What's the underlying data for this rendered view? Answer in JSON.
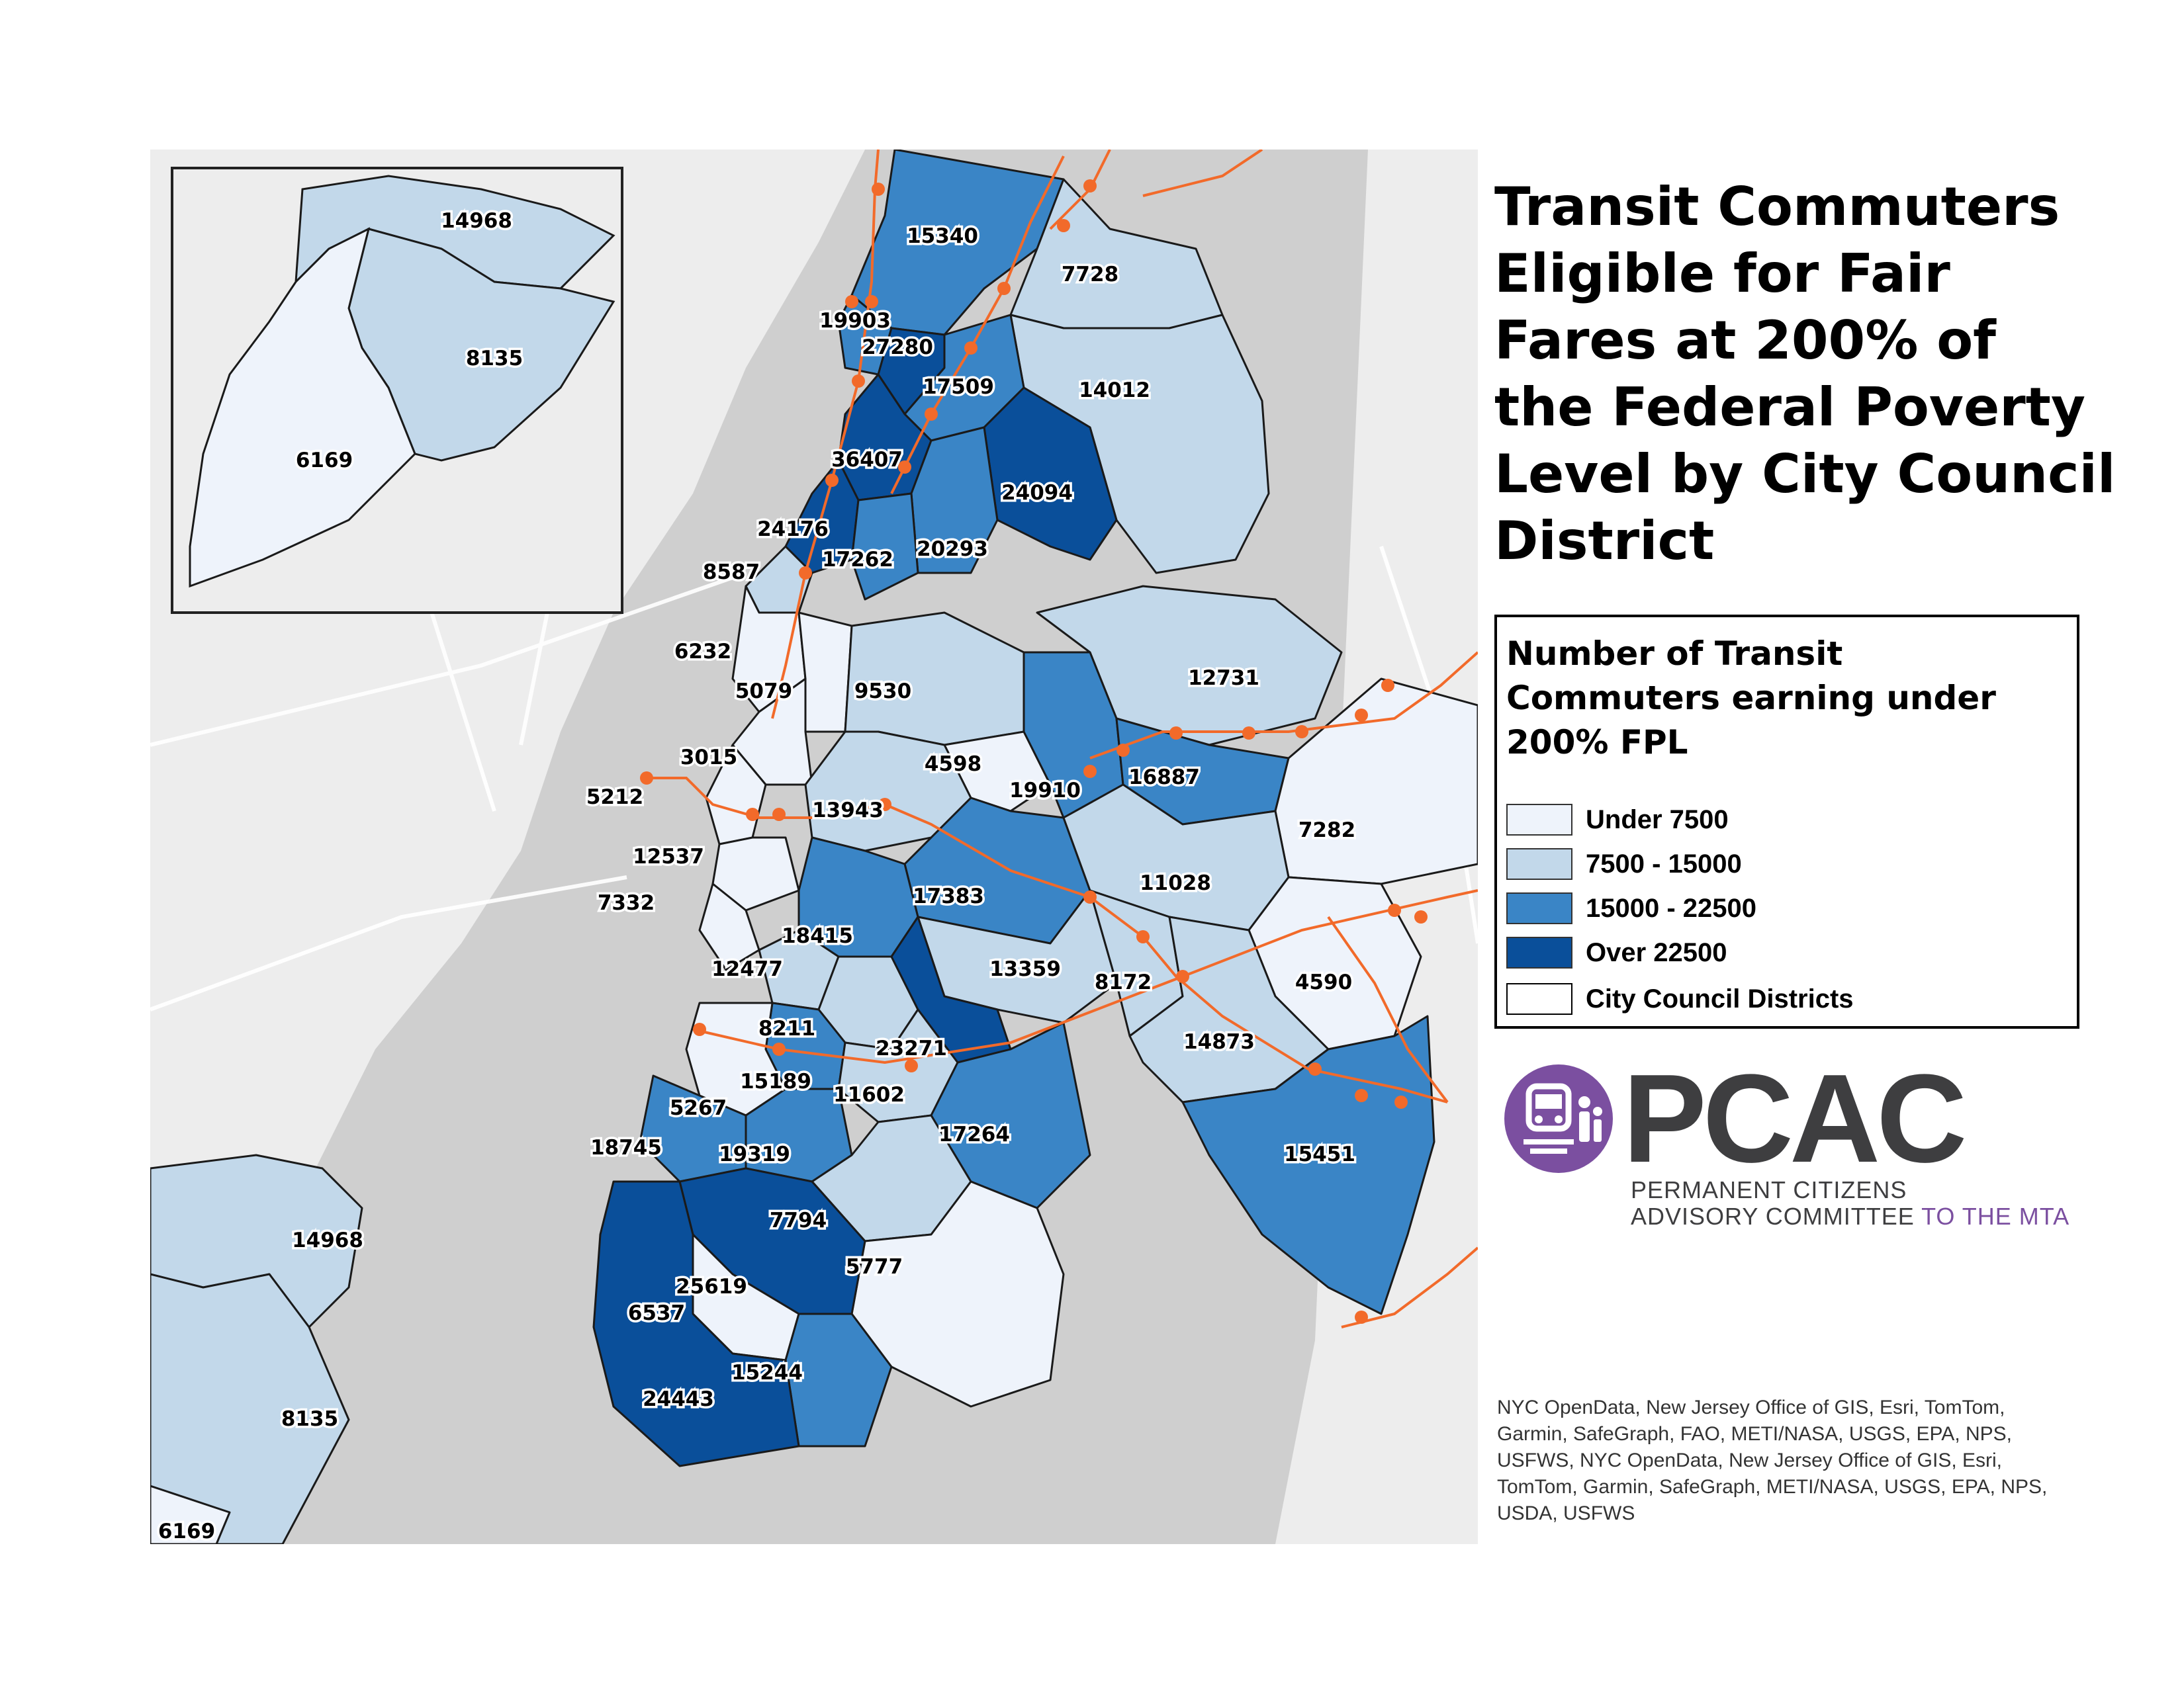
{
  "title_lines": [
    "Transit Commuters",
    "Eligible for Fair",
    "Fares at 200% of",
    "the Federal Poverty",
    "Level by City Council",
    "District"
  ],
  "legend": {
    "title_lines": [
      "Number of Transit",
      "Commuters earning under",
      "200% FPL"
    ],
    "items": [
      {
        "label": "Under 7500",
        "color": "#eef3fb"
      },
      {
        "label": "7500 - 15000",
        "color": "#c2d8ea"
      },
      {
        "label": "15000 - 22500",
        "color": "#3a85c6"
      },
      {
        "label": "Over 22500",
        "color": "#0a4f9a"
      },
      {
        "label": "City Council Districts",
        "color": "#ffffff"
      }
    ]
  },
  "colors": {
    "water": "#cfcfcf",
    "land": "#ededed",
    "border": "#1a1a1a",
    "transit_line": "#f26a2a"
  },
  "icons": {
    "logo_icon": "train-icon"
  },
  "logo": {
    "wordmark": "PCAC",
    "line1": "PERMANENT CITIZENS",
    "line2_main": "ADVISORY COMMITTEE ",
    "line2_accent": "TO THE MTA"
  },
  "credits": "NYC OpenData, New Jersey Office of GIS, Esri, TomTom, Garmin, SafeGraph, FAO, METI/NASA, USGS, EPA, NPS, USFWS, NYC OpenData, New Jersey Office of GIS, Esri, TomTom, Garmin, SafeGraph, METI/NASA, USGS, EPA, NPS, USDA, USFWS",
  "inset_labels": [
    "14968",
    "8135",
    "6169"
  ],
  "district_labels": [
    "15340",
    "7728",
    "19903",
    "27280",
    "14012",
    "17509",
    "36407",
    "24094",
    "24176",
    "20293",
    "8587",
    "17262",
    "6232",
    "5079",
    "9530",
    "12731",
    "3015",
    "4598",
    "19910",
    "16887",
    "5212",
    "13943",
    "7282",
    "12537",
    "17383",
    "11028",
    "7332",
    "18415",
    "12477",
    "13359",
    "8172",
    "4590",
    "8211",
    "23271",
    "14873",
    "15189",
    "11602",
    "5267",
    "17264",
    "15451",
    "18745",
    "19319",
    "7794",
    "14968",
    "5777",
    "25619",
    "6537",
    "15244",
    "24443",
    "8135",
    "6169"
  ]
}
